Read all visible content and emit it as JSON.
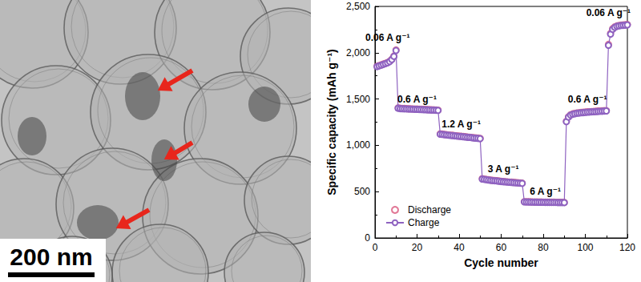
{
  "image": {
    "scale_bar": "200 nm"
  },
  "chart_data": {
    "type": "scatter",
    "x_label": "Cycle number",
    "y_label": "Specific capacity (mAh g⁻¹)",
    "xlim": [
      0,
      120
    ],
    "xticks": [
      0,
      20,
      40,
      60,
      80,
      100,
      120
    ],
    "ylim": [
      0,
      2500
    ],
    "yticks": [
      0,
      500,
      1000,
      1500,
      2000,
      2500
    ],
    "grid": false,
    "legend": "lower left",
    "x": [
      1,
      2,
      3,
      4,
      5,
      6,
      7,
      8,
      9,
      10,
      11,
      12,
      13,
      14,
      15,
      16,
      17,
      18,
      19,
      20,
      21,
      22,
      23,
      24,
      25,
      26,
      27,
      28,
      29,
      30,
      31,
      32,
      33,
      34,
      35,
      36,
      37,
      38,
      39,
      40,
      41,
      42,
      43,
      44,
      45,
      46,
      47,
      48,
      49,
      50,
      51,
      52,
      53,
      54,
      55,
      56,
      57,
      58,
      59,
      60,
      61,
      62,
      63,
      64,
      65,
      66,
      67,
      68,
      69,
      70,
      71,
      72,
      73,
      74,
      75,
      76,
      77,
      78,
      79,
      80,
      81,
      82,
      83,
      84,
      85,
      86,
      87,
      88,
      89,
      90,
      91,
      92,
      93,
      94,
      95,
      96,
      97,
      98,
      99,
      100,
      101,
      102,
      103,
      104,
      105,
      106,
      107,
      108,
      109,
      110,
      111,
      112,
      113,
      114,
      115,
      116,
      117,
      118,
      119,
      120
    ],
    "series": [
      {
        "name": "Discharge",
        "color": "#d9547a",
        "marker": "open_circle",
        "line_style": "none",
        "values": [
          1855,
          1862,
          1870,
          1878,
          1885,
          1895,
          1908,
          1930,
          1965,
          2030,
          1405,
          1400,
          1398,
          1398,
          1396,
          1395,
          1395,
          1393,
          1392,
          1392,
          1390,
          1390,
          1388,
          1388,
          1386,
          1385,
          1384,
          1383,
          1382,
          1380,
          1125,
          1122,
          1118,
          1115,
          1112,
          1110,
          1108,
          1105,
          1102,
          1100,
          1098,
          1095,
          1093,
          1090,
          1088,
          1085,
          1082,
          1080,
          1078,
          1075,
          640,
          636,
          632,
          628,
          625,
          622,
          620,
          618,
          615,
          612,
          610,
          608,
          606,
          604,
          602,
          600,
          598,
          596,
          594,
          592,
          392,
          391,
          390,
          390,
          389,
          389,
          388,
          388,
          388,
          387,
          387,
          387,
          386,
          386,
          386,
          385,
          385,
          385,
          385,
          384,
          1260,
          1310,
          1330,
          1340,
          1345,
          1350,
          1352,
          1355,
          1357,
          1360,
          1362,
          1363,
          1365,
          1366,
          1368,
          1370,
          1371,
          1372,
          1374,
          1375,
          2090,
          2210,
          2260,
          2280,
          2290,
          2295,
          2298,
          2300,
          2302,
          2305
        ]
      },
      {
        "name": "Charge",
        "color": "#8e62c0",
        "marker": "open_circle",
        "line_style": "solid",
        "values": [
          1850,
          1858,
          1866,
          1874,
          1882,
          1891,
          1904,
          1926,
          1960,
          2024,
          1400,
          1396,
          1395,
          1394,
          1393,
          1392,
          1391,
          1390,
          1389,
          1388,
          1387,
          1386,
          1385,
          1384,
          1383,
          1382,
          1381,
          1380,
          1379,
          1377,
          1120,
          1118,
          1115,
          1112,
          1109,
          1107,
          1105,
          1102,
          1099,
          1097,
          1095,
          1092,
          1090,
          1087,
          1085,
          1082,
          1079,
          1077,
          1075,
          1072,
          636,
          632,
          629,
          625,
          622,
          619,
          617,
          615,
          612,
          609,
          607,
          605,
          603,
          601,
          599,
          597,
          595,
          593,
          591,
          589,
          389,
          388,
          388,
          387,
          387,
          386,
          386,
          385,
          385,
          385,
          384,
          384,
          384,
          383,
          383,
          383,
          382,
          382,
          382,
          381,
          1255,
          1305,
          1326,
          1336,
          1341,
          1346,
          1348,
          1351,
          1353,
          1356,
          1358,
          1359,
          1361,
          1362,
          1364,
          1366,
          1367,
          1368,
          1370,
          1371,
          2080,
          2200,
          2252,
          2274,
          2285,
          2290,
          2294,
          2296,
          2298,
          2300
        ]
      }
    ],
    "annotations": [
      {
        "text": "0.06 A g⁻¹",
        "x": 6,
        "y": 2160
      },
      {
        "text": "0.6 A g⁻¹",
        "x": 20,
        "y": 1500
      },
      {
        "text": "1.2 A g⁻¹",
        "x": 41,
        "y": 1230
      },
      {
        "text": "3 A g⁻¹",
        "x": 61,
        "y": 740
      },
      {
        "text": "6 A g⁻¹",
        "x": 81,
        "y": 500
      },
      {
        "text": "0.6 A g⁻¹",
        "x": 101,
        "y": 1500
      },
      {
        "text": "0.06 A g⁻¹",
        "x": 111,
        "y": 2430
      }
    ]
  }
}
